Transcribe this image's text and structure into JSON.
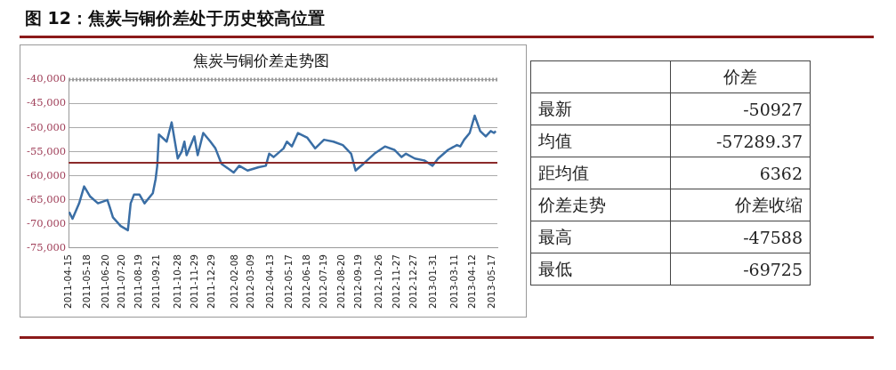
{
  "chart_data": [
    {
      "type": "line",
      "title": "焦炭与铜价差走势图",
      "annotations": [
        "图 12：焦炭与铜价差处于历史较高位置"
      ],
      "x": [
        "2011-04-15",
        "2011-04-21",
        "2011-05-03",
        "2011-05-12",
        "2011-05-23",
        "2011-06-06",
        "2011-06-23",
        "2011-06-27",
        "2011-07-03",
        "2011-07-17",
        "2011-07-30",
        "2011-08-04",
        "2011-08-10",
        "2011-08-20",
        "2011-08-29",
        "2011-09-13",
        "2011-09-18",
        "2011-09-21",
        "2011-09-24",
        "2011-10-08",
        "2011-10-17",
        "2011-10-28",
        "2011-11-04",
        "2011-11-09",
        "2011-11-13",
        "2011-11-27",
        "2011-12-03",
        "2011-12-13",
        "2011-12-26",
        "2012-01-04",
        "2012-01-15",
        "2012-02-06",
        "2012-02-16",
        "2012-03-02",
        "2012-03-22",
        "2012-04-04",
        "2012-04-10",
        "2012-04-18",
        "2012-05-06",
        "2012-05-12",
        "2012-05-21",
        "2012-06-01",
        "2012-06-18",
        "2012-07-02",
        "2012-07-18",
        "2012-08-04",
        "2012-08-21",
        "2012-09-05",
        "2012-09-13",
        "2012-09-27",
        "2012-10-17",
        "2012-11-05",
        "2012-11-22",
        "2012-12-05",
        "2012-12-13",
        "2012-12-29",
        "2013-01-15",
        "2013-01-30",
        "2013-02-09",
        "2013-02-27",
        "2013-03-15",
        "2013-03-21",
        "2013-03-28",
        "2013-04-07",
        "2013-04-16",
        "2013-04-26",
        "2013-05-06",
        "2013-05-15",
        "2013-05-21",
        "2013-05-24"
      ],
      "series": [
        {
          "color": "#3a6ea5",
          "values": [
            -67500,
            -68900,
            -65700,
            -62200,
            -64300,
            -65700,
            -65000,
            -66400,
            -68600,
            -70400,
            -71300,
            -65700,
            -63900,
            -63900,
            -65700,
            -63600,
            -60700,
            -57900,
            -51400,
            -52900,
            -48900,
            -56400,
            -55000,
            -52900,
            -55700,
            -51800,
            -55700,
            -51100,
            -52900,
            -54300,
            -57500,
            -59300,
            -57900,
            -58900,
            -58200,
            -57900,
            -55400,
            -56100,
            -54300,
            -52900,
            -53900,
            -51100,
            -52100,
            -54300,
            -52500,
            -52900,
            -53600,
            -55400,
            -58900,
            -57500,
            -55400,
            -53900,
            -54600,
            -56100,
            -55400,
            -56400,
            -56800,
            -57900,
            -56400,
            -54600,
            -53600,
            -53900,
            -52500,
            -51100,
            -47500,
            -50700,
            -51800,
            -50700,
            -51100,
            -50700
          ]
        }
      ],
      "xlim": [
        "2011-04-14",
        "2013-05-27"
      ],
      "xticks": [
        "2011-04-15",
        "2011-05-18",
        "2011-06-20",
        "2011-07-20",
        "2011-08-19",
        "2011-09-21",
        "2011-10-28",
        "2011-11-29",
        "2011-12-29",
        "2012-02-08",
        "2012-03-09",
        "2012-04-13",
        "2012-05-17",
        "2012-06-18",
        "2012-07-19",
        "2012-08-20",
        "2012-09-19",
        "2012-10-26",
        "2012-11-27",
        "2012-12-27",
        "2013-01-31",
        "2013-03-11",
        "2013-04-12",
        "2013-05-17"
      ],
      "ylim": [
        -75000,
        -40000
      ],
      "yticks": [
        {
          "value": -75000,
          "label": "-75,000"
        },
        {
          "value": -70000,
          "label": "-70,000"
        },
        {
          "value": -65000,
          "label": "-65,000"
        },
        {
          "value": -60000,
          "label": "-60,000"
        },
        {
          "value": -55000,
          "label": "-55,000"
        },
        {
          "value": -50000,
          "label": "-50,000"
        },
        {
          "value": -45000,
          "label": "-45,000"
        },
        {
          "value": -40000,
          "label": "-40,000"
        }
      ],
      "ref_lines": [
        {
          "axis": "y",
          "value": -57289.37,
          "color": "#8b2a2a",
          "line_style": "solid"
        },
        {
          "axis": "y",
          "value": -40000,
          "color": "#999999",
          "line_style": "dotted"
        }
      ],
      "grid": "y",
      "legend": false,
      "marker": "none",
      "line_style": "solid"
    },
    {
      "type": "other",
      "title": "价差",
      "categories": [
        "最新",
        "均值",
        "距均值",
        "价差走势",
        "最高",
        "最低"
      ],
      "value_labels": [
        "-50927",
        "-57289.37",
        "6362",
        "价差收缩",
        "-47588",
        "-69725"
      ]
    }
  ]
}
